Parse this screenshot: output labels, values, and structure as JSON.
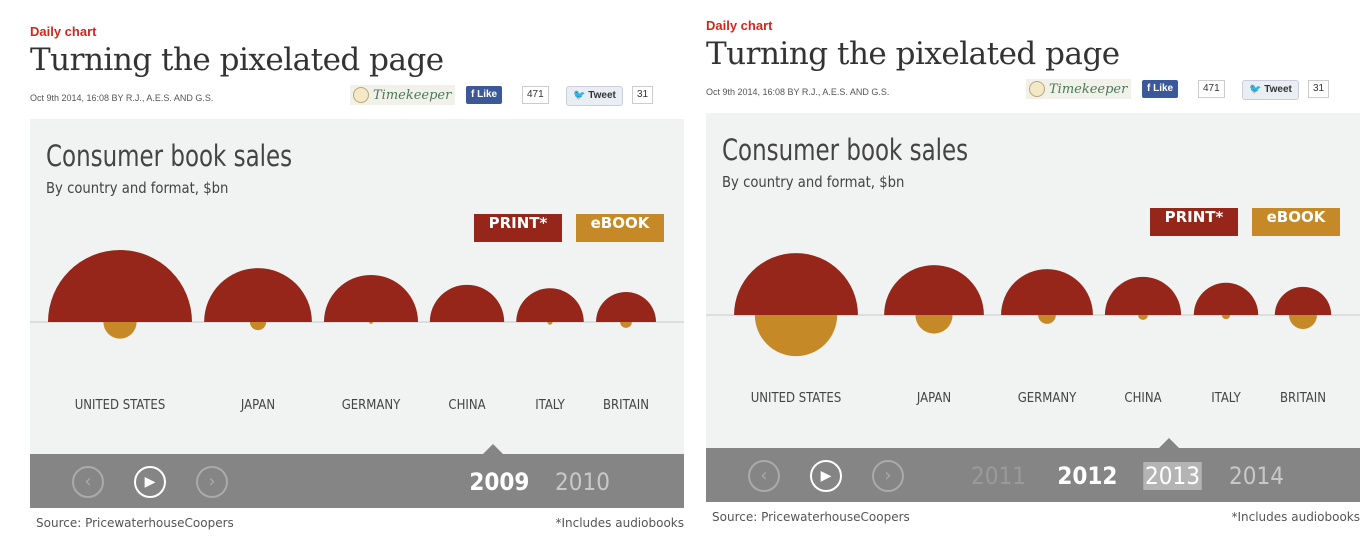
{
  "article": {
    "kicker": "Daily chart",
    "headline": "Turning the pixelated page",
    "byline": "Oct 9th 2014, 16:08 BY R.J., A.E.S. AND G.S.",
    "timekeeper": "Timekeeper",
    "like_label": "Like",
    "like_count": "471",
    "tweet_label": "Tweet",
    "tweet_count": "31"
  },
  "chart": {
    "title": "Consumer book sales",
    "subtitle": "By country and format, $bn",
    "legend_print": "PRINT*",
    "legend_ebook": "eBOOK",
    "source": "Source: PricewaterhouseCoopers",
    "note": "*Includes audiobooks"
  },
  "colors": {
    "print": "#962619",
    "ebook": "#c58a27",
    "background": "#f1f2f2",
    "timeline": "#858585",
    "kicker": "#d0281c"
  },
  "controls": {
    "prev": "chevron-left-icon",
    "play": "play-icon",
    "next": "chevron-right-icon"
  },
  "chart_data": [
    {
      "type": "semicircle-bubble",
      "year": "2009",
      "categories": [
        "UNITED STATES",
        "JAPAN",
        "GERMANY",
        "CHINA",
        "ITALY",
        "BRITAIN"
      ],
      "series": [
        {
          "name": "PRINT*",
          "values": [
            15.0,
            8.4,
            6.4,
            4.0,
            3.3,
            2.6
          ]
        },
        {
          "name": "eBOOK",
          "values": [
            0.8,
            0.19,
            0.01,
            0.0,
            0.02,
            0.1
          ]
        }
      ],
      "timeline": [
        {
          "label": "2009",
          "state": "on"
        },
        {
          "label": "2010",
          "state": "off"
        }
      ]
    },
    {
      "type": "semicircle-bubble",
      "year": "2013",
      "categories": [
        "UNITED STATES",
        "JAPAN",
        "GERMANY",
        "CHINA",
        "ITALY",
        "BRITAIN"
      ],
      "series": [
        {
          "name": "PRINT*",
          "values": [
            11.1,
            7.2,
            6.1,
            4.2,
            3.0,
            2.3
          ]
        },
        {
          "name": "eBOOK",
          "values": [
            4.9,
            1.0,
            0.23,
            0.07,
            0.05,
            0.57
          ]
        }
      ],
      "timeline": [
        {
          "label": "2011",
          "state": "fade"
        },
        {
          "label": "2012",
          "state": "on"
        },
        {
          "label": "2013",
          "state": "hl"
        },
        {
          "label": "2014",
          "state": "off"
        }
      ]
    }
  ]
}
